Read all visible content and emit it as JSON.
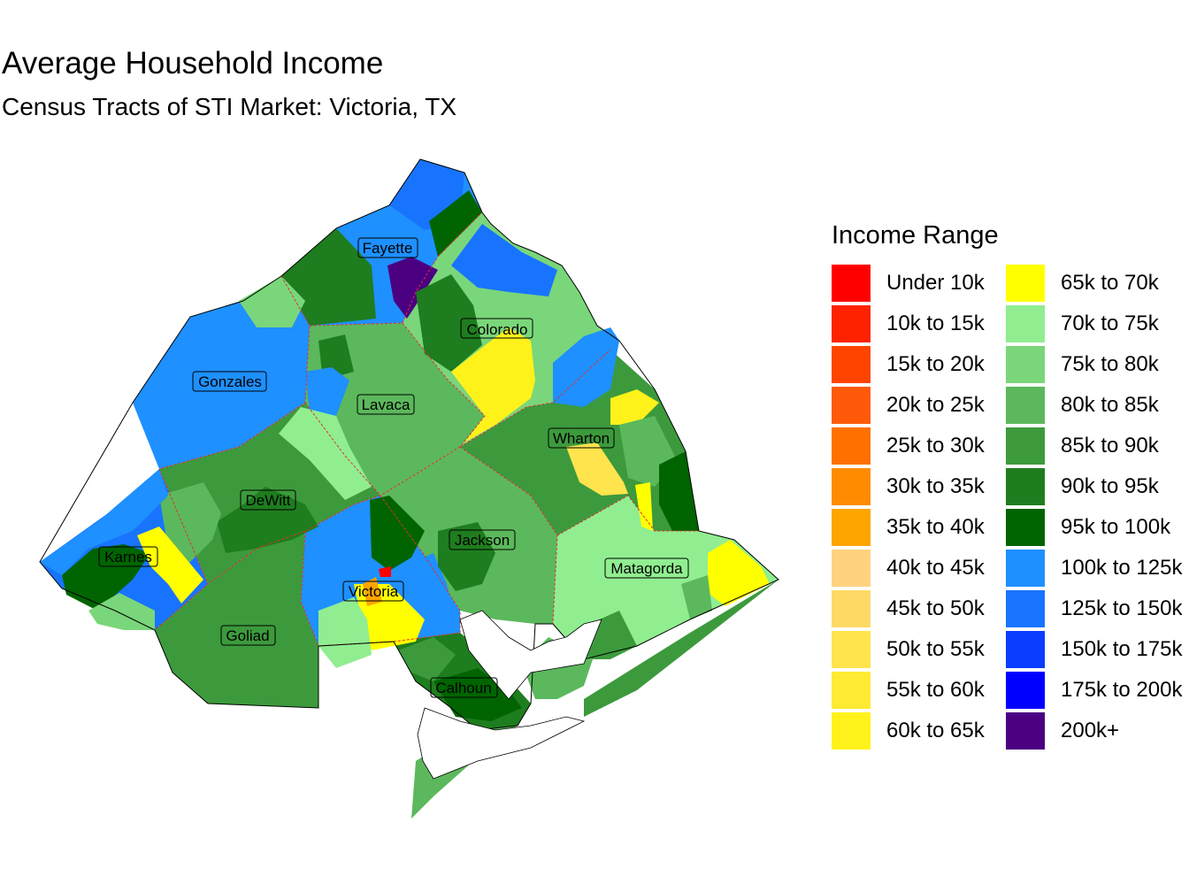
{
  "title": "Average Household Income",
  "subtitle": "Census Tracts of STI Market: Victoria, TX",
  "counties": [
    {
      "name": "Fayette",
      "fill": "#1E90FF"
    },
    {
      "name": "Colorado",
      "fill": "#7AD67A"
    },
    {
      "name": "Gonzales",
      "fill": "#1E90FF"
    },
    {
      "name": "Lavaca",
      "fill": "#5CB85C"
    },
    {
      "name": "Wharton",
      "fill": "#3C9A3C"
    },
    {
      "name": "DeWitt",
      "fill": "#3C9A3C"
    },
    {
      "name": "Karnes",
      "fill": "#1874FF"
    },
    {
      "name": "Jackson",
      "fill": "#5CB85C"
    },
    {
      "name": "Matagorda",
      "fill": "#90EE90"
    },
    {
      "name": "Victoria",
      "fill": "#1E90FF"
    },
    {
      "name": "Goliad",
      "fill": "#3C9A3C"
    },
    {
      "name": "Calhoun",
      "fill": "#1E7D1E"
    }
  ],
  "legend": {
    "title": "Income Range",
    "items": [
      {
        "label": "Under 10k",
        "color": "#FF0000"
      },
      {
        "label": "10k to 15k",
        "color": "#FF2200"
      },
      {
        "label": "15k to 20k",
        "color": "#FF4400"
      },
      {
        "label": "20k to 25k",
        "color": "#FF5A0A"
      },
      {
        "label": "25k to 30k",
        "color": "#FF7000"
      },
      {
        "label": "30k to 35k",
        "color": "#FF8C00"
      },
      {
        "label": "35k to 40k",
        "color": "#FFA500"
      },
      {
        "label": "40k to 45k",
        "color": "#FFD27F"
      },
      {
        "label": "45k to 50k",
        "color": "#FFD966"
      },
      {
        "label": "50k to 55k",
        "color": "#FFE44D"
      },
      {
        "label": "55k to 60k",
        "color": "#FFEB33"
      },
      {
        "label": "60k to 65k",
        "color": "#FFF21A"
      },
      {
        "label": "65k to 70k",
        "color": "#FFFF00"
      },
      {
        "label": "70k to 75k",
        "color": "#90EE90"
      },
      {
        "label": "75k to 80k",
        "color": "#7AD67A"
      },
      {
        "label": "80k to 85k",
        "color": "#5CB85C"
      },
      {
        "label": "85k to 90k",
        "color": "#3C9A3C"
      },
      {
        "label": "90k to 95k",
        "color": "#1E7D1E"
      },
      {
        "label": "95k to 100k",
        "color": "#006400"
      },
      {
        "label": "100k to 125k",
        "color": "#1E90FF"
      },
      {
        "label": "125k to 150k",
        "color": "#1874FF"
      },
      {
        "label": "150k to 175k",
        "color": "#0A3DFF"
      },
      {
        "label": "175k to 200k",
        "color": "#0000FF"
      },
      {
        "label": "200k+",
        "color": "#4B0082"
      }
    ]
  }
}
